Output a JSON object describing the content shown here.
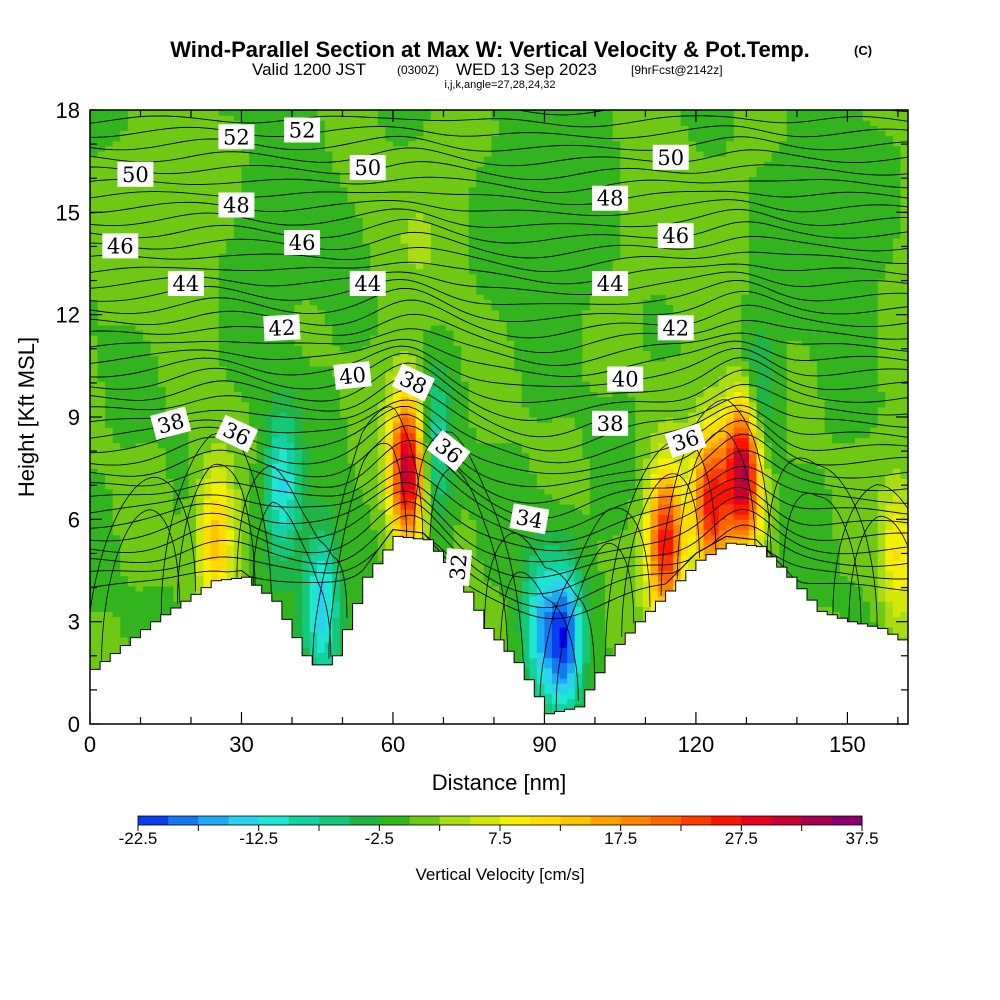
{
  "header": {
    "title": "Wind-Parallel Section at Max W: Vertical Velocity & Pot.Temp.",
    "copyright": "(C)",
    "valid_prefix": "Valid 1200 JST",
    "valid_utc": "(0300Z)",
    "valid_date": "WED 13 Sep 2023",
    "forecast": "[9hrFcst@2142z]",
    "indices": "i,j,k,angle=27,28,24,32"
  },
  "chart_data": {
    "type": "heatmap",
    "xlabel": "Distance [nm]",
    "ylabel": "Height [Kft MSL]",
    "xlim": [
      0,
      162
    ],
    "ylim": [
      0,
      18
    ],
    "x_ticks": [
      "0",
      "30",
      "60",
      "90",
      "120",
      "150"
    ],
    "y_ticks": [
      "0",
      "3",
      "6",
      "9",
      "12",
      "15",
      "18"
    ],
    "colorbar": {
      "label": "Vertical Velocity [cm/s]",
      "range": [
        -22.5,
        37.5
      ],
      "step": 2.5,
      "tick_labels": [
        "-22.5",
        "-12.5",
        "-2.5",
        "7.5",
        "17.5",
        "27.5",
        "37.5"
      ],
      "colors": [
        "#0000ff",
        "#0a3cf0",
        "#1478f0",
        "#1eaaf5",
        "#28d2f0",
        "#1ee6d2",
        "#14d2a0",
        "#14c878",
        "#1eb446",
        "#32b41e",
        "#6ec814",
        "#aadc14",
        "#d2e60a",
        "#f5f000",
        "#ffdc00",
        "#ffc300",
        "#ffa000",
        "#ff8200",
        "#ff6400",
        "#ff3c00",
        "#ff1400",
        "#e6001e",
        "#c80032",
        "#aa0050",
        "#8c006e",
        "#6e008c"
      ]
    },
    "terrain": {
      "x": [
        0,
        6,
        12,
        18,
        24,
        30,
        36,
        42,
        45,
        48,
        54,
        60,
        66,
        72,
        78,
        84,
        90,
        96,
        102,
        108,
        114,
        120,
        126,
        132,
        138,
        144,
        150,
        156,
        162
      ],
      "height": [
        1.6,
        2.3,
        3.0,
        3.6,
        4.2,
        4.3,
        3.6,
        2.0,
        1.6,
        2.0,
        4.3,
        5.5,
        5.4,
        4.4,
        2.8,
        1.8,
        0.3,
        0.5,
        2.0,
        3.0,
        3.9,
        4.8,
        5.3,
        5.2,
        4.3,
        3.3,
        3.0,
        2.8,
        2.3
      ]
    },
    "updrafts": [
      {
        "x": 25,
        "z": 5.5,
        "w": 14
      },
      {
        "x": 63,
        "z": 7.5,
        "w": 33
      },
      {
        "x": 114,
        "z": 5.3,
        "w": 27
      },
      {
        "x": 123,
        "z": 6.5,
        "w": 26
      },
      {
        "x": 129.5,
        "z": 7.5,
        "w": 36
      },
      {
        "x": 160,
        "z": 5.0,
        "w": 10
      }
    ],
    "downdrafts": [
      {
        "x": 38,
        "z": 7.0,
        "w": -13
      },
      {
        "x": 46,
        "z": 3.5,
        "w": -15
      },
      {
        "x": 68,
        "z": 8.0,
        "w": -11
      },
      {
        "x": 89,
        "z": 2.8,
        "w": -13
      },
      {
        "x": 94,
        "z": 2.5,
        "w": -20
      },
      {
        "x": 132,
        "z": 9.2,
        "w": -10
      }
    ],
    "contour_labels": [
      {
        "text": "52",
        "x": 29,
        "z": 17.2,
        "angle": 0
      },
      {
        "text": "52",
        "x": 42,
        "z": 17.4,
        "angle": 0
      },
      {
        "text": "50",
        "x": 9,
        "z": 16.1,
        "angle": 0
      },
      {
        "text": "50",
        "x": 55,
        "z": 16.3,
        "angle": 0
      },
      {
        "text": "50",
        "x": 115,
        "z": 16.6,
        "angle": 0
      },
      {
        "text": "48",
        "x": 29,
        "z": 15.2,
        "angle": 0
      },
      {
        "text": "48",
        "x": 103,
        "z": 15.4,
        "angle": 0
      },
      {
        "text": "46",
        "x": 6,
        "z": 14.0,
        "angle": 0
      },
      {
        "text": "46",
        "x": 42,
        "z": 14.1,
        "angle": 0
      },
      {
        "text": "46",
        "x": 116,
        "z": 14.3,
        "angle": 0
      },
      {
        "text": "44",
        "x": 19,
        "z": 12.9,
        "angle": 0
      },
      {
        "text": "44",
        "x": 55,
        "z": 12.9,
        "angle": 0
      },
      {
        "text": "44",
        "x": 103,
        "z": 12.9,
        "angle": 0
      },
      {
        "text": "42",
        "x": 38,
        "z": 11.6,
        "angle": -3
      },
      {
        "text": "42",
        "x": 116,
        "z": 11.6,
        "angle": 0
      },
      {
        "text": "40",
        "x": 52,
        "z": 10.2,
        "angle": -6
      },
      {
        "text": "40",
        "x": 106,
        "z": 10.1,
        "angle": 0
      },
      {
        "text": "38",
        "x": 16,
        "z": 8.8,
        "angle": -15
      },
      {
        "text": "38",
        "x": 64,
        "z": 10.0,
        "angle": 25
      },
      {
        "text": "38",
        "x": 103,
        "z": 8.8,
        "angle": 0
      },
      {
        "text": "36",
        "x": 29,
        "z": 8.5,
        "angle": 25
      },
      {
        "text": "36",
        "x": 71,
        "z": 8.0,
        "angle": 38
      },
      {
        "text": "36",
        "x": 118,
        "z": 8.3,
        "angle": -18
      },
      {
        "text": "34",
        "x": 87,
        "z": 6.0,
        "angle": 10
      },
      {
        "text": "32",
        "x": 73,
        "z": 4.6,
        "angle": -85
      }
    ]
  }
}
